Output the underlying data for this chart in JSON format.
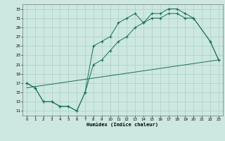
{
  "xlabel": "Humidex (Indice chaleur)",
  "bg_color": "#cce8e0",
  "grid_color": "#aacfc8",
  "line_color": "#1a6e5e",
  "xlim": [
    -0.5,
    23.5
  ],
  "ylim": [
    10,
    34
  ],
  "xticks": [
    0,
    1,
    2,
    3,
    4,
    5,
    6,
    7,
    8,
    9,
    10,
    11,
    12,
    13,
    14,
    15,
    16,
    17,
    18,
    19,
    20,
    21,
    22,
    23
  ],
  "yticks": [
    11,
    13,
    15,
    17,
    19,
    21,
    23,
    25,
    27,
    29,
    31,
    33
  ],
  "line1_x": [
    0,
    1,
    2,
    3,
    4,
    5,
    6,
    7,
    8,
    9,
    10,
    11,
    12,
    13,
    14,
    15,
    16,
    17,
    18,
    19,
    20,
    22,
    23
  ],
  "line1_y": [
    17,
    16,
    13,
    13,
    12,
    12,
    11,
    15,
    25,
    26,
    27,
    30,
    31,
    32,
    30,
    32,
    32,
    33,
    33,
    32,
    31,
    26,
    22
  ],
  "line2_x": [
    0,
    1,
    2,
    3,
    4,
    5,
    6,
    7,
    8,
    9,
    10,
    11,
    12,
    13,
    14,
    15,
    16,
    17,
    18,
    19,
    20,
    22,
    23
  ],
  "line2_y": [
    17,
    16,
    13,
    13,
    12,
    12,
    11,
    15,
    21,
    22,
    24,
    26,
    27,
    29,
    30,
    31,
    31,
    32,
    32,
    31,
    31,
    26,
    22
  ],
  "line3_x": [
    0,
    23
  ],
  "line3_y": [
    16,
    22
  ]
}
